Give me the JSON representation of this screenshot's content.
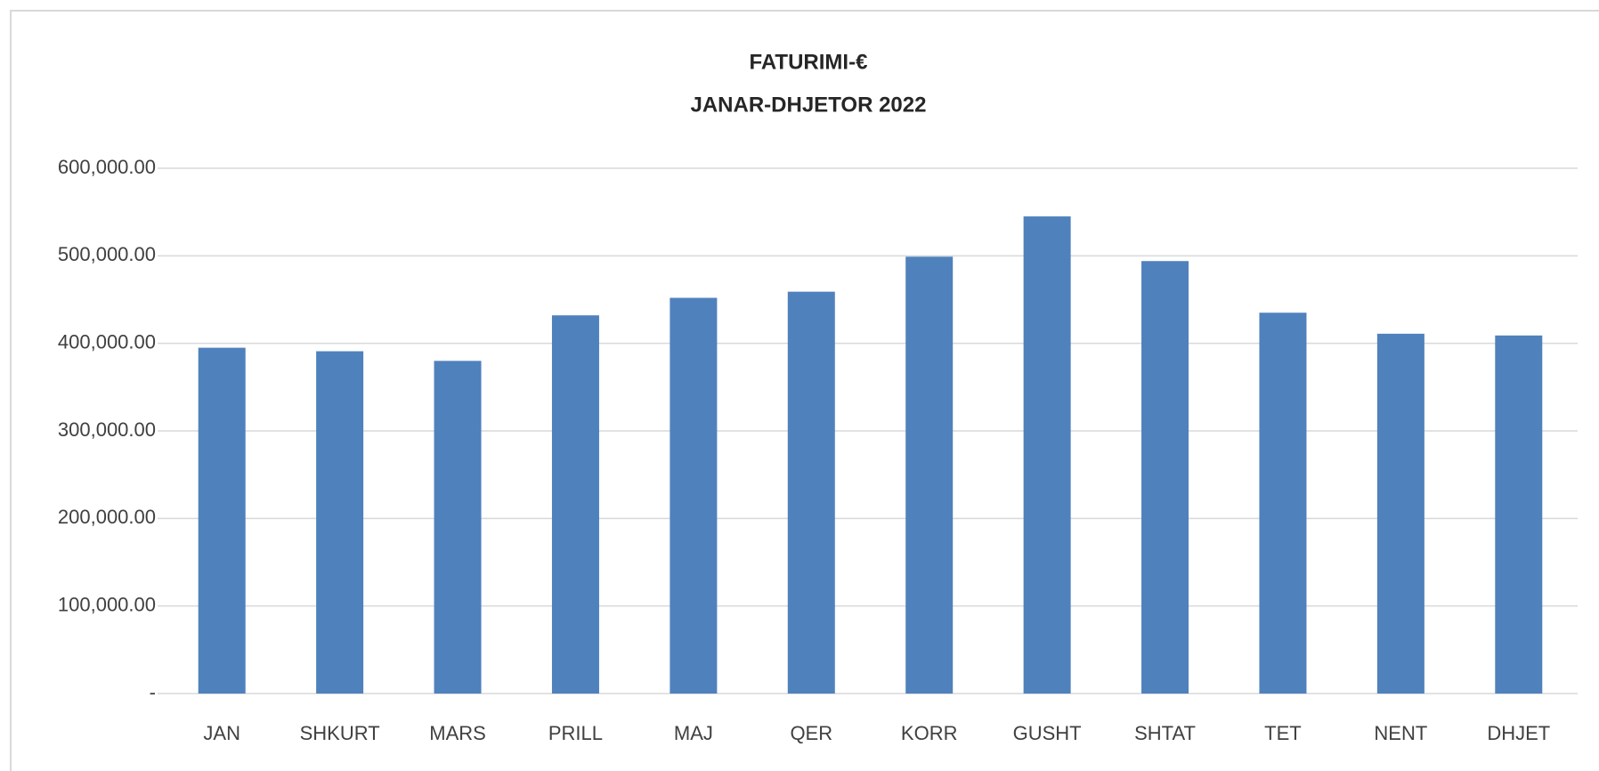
{
  "chart_data": {
    "type": "bar",
    "title": "FATURIMI-€",
    "subtitle": "JANAR-DHJETOR  2022",
    "categories": [
      "JAN",
      "SHKURT",
      "MARS",
      "PRILL",
      "MAJ",
      "QER",
      "KORR",
      "GUSHT",
      "SHTAT",
      "TET",
      "NENT",
      "DHJET"
    ],
    "values": [
      395000,
      391000,
      380000,
      432000,
      452000,
      459000,
      499000,
      545000,
      494000,
      435000,
      411000,
      409000
    ],
    "color": "#4f81bd",
    "ylim": [
      0,
      600000
    ],
    "yticks": [
      {
        "value": 0,
        "label": "-"
      },
      {
        "value": 100000,
        "label": "100,000.00"
      },
      {
        "value": 200000,
        "label": "200,000.00"
      },
      {
        "value": 300000,
        "label": "300,000.00"
      },
      {
        "value": 400000,
        "label": "400,000.00"
      },
      {
        "value": 500000,
        "label": "500,000.00"
      },
      {
        "value": 600000,
        "label": "600,000.00"
      }
    ],
    "grid": true
  }
}
